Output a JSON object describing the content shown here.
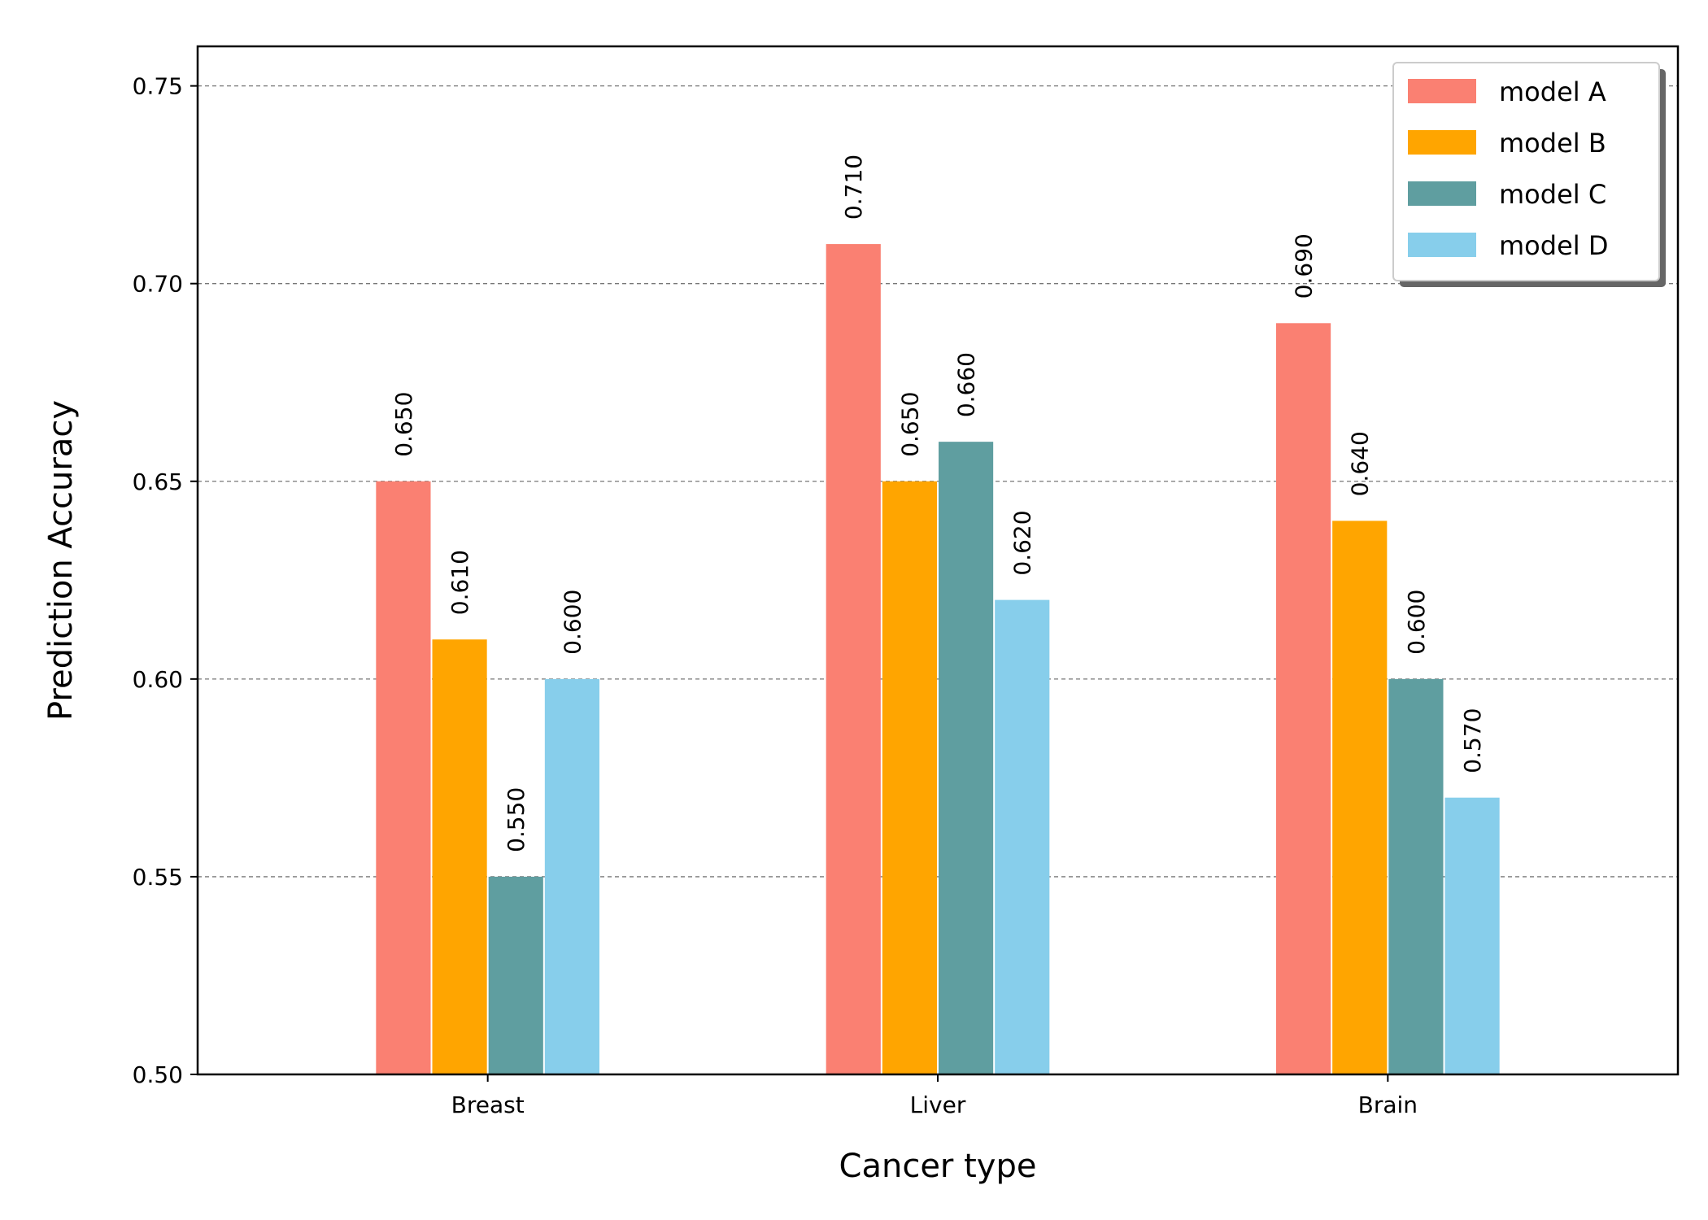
{
  "chart_data": {
    "type": "bar",
    "title": "",
    "xlabel": "Cancer type",
    "ylabel": "Prediction Accuracy",
    "categories": [
      "Breast",
      "Liver",
      "Brain"
    ],
    "series": [
      {
        "name": "model A",
        "color": "#fa8072",
        "values": [
          0.65,
          0.71,
          0.69
        ],
        "labels": [
          "0.650",
          "0.710",
          "0.690"
        ]
      },
      {
        "name": "model B",
        "color": "#ffa500",
        "values": [
          0.61,
          0.65,
          0.64
        ],
        "labels": [
          "0.610",
          "0.650",
          "0.640"
        ]
      },
      {
        "name": "model C",
        "color": "#5f9ea0",
        "values": [
          0.55,
          0.66,
          0.6
        ],
        "labels": [
          "0.550",
          "0.660",
          "0.600"
        ]
      },
      {
        "name": "model D",
        "color": "#87ceeb",
        "values": [
          0.6,
          0.62,
          0.57
        ],
        "labels": [
          "0.600",
          "0.620",
          "0.570"
        ]
      }
    ],
    "ylim": [
      0.5,
      0.76
    ],
    "yticks": [
      0.5,
      0.55,
      0.6,
      0.65,
      0.7,
      0.75
    ],
    "ytick_labels": [
      "0.50",
      "0.55",
      "0.60",
      "0.65",
      "0.70",
      "0.75"
    ],
    "grid": "horizontal dashed",
    "legend_position": "top-right"
  }
}
